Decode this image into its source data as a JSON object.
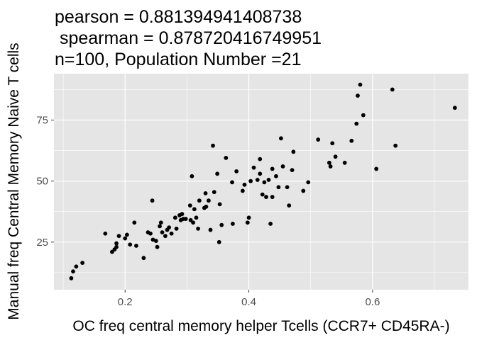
{
  "chart_data": {
    "type": "scatter",
    "title_lines": [
      "pearson = 0.881394941408738",
      " spearman = 0.878720416749951",
      "n=100, Population Number =21"
    ],
    "xlabel": "OC freq central memory helper Tcells (CCR7+ CD45RA-)",
    "ylabel": "Manual freq Central Memory Naive T cells",
    "xlim": [
      0.085,
      0.755
    ],
    "ylim": [
      5.5,
      94
    ],
    "x_ticks": [
      {
        "value": 0.2,
        "label": "0.2"
      },
      {
        "value": 0.4,
        "label": "0.4"
      },
      {
        "value": 0.6,
        "label": "0.6"
      }
    ],
    "y_ticks": [
      {
        "value": 25,
        "label": "25"
      },
      {
        "value": 50,
        "label": "50"
      },
      {
        "value": 75,
        "label": "75"
      }
    ],
    "grid": true,
    "panel_color": "#e5e5e5",
    "grid_color": "#ffffff",
    "point_color": "#000000",
    "points": [
      [
        0.113,
        10.2
      ],
      [
        0.116,
        13
      ],
      [
        0.121,
        15
      ],
      [
        0.131,
        16.5
      ],
      [
        0.168,
        28.5
      ],
      [
        0.179,
        21
      ],
      [
        0.183,
        22
      ],
      [
        0.186,
        24.5
      ],
      [
        0.186,
        23
      ],
      [
        0.19,
        27.5
      ],
      [
        0.2,
        26.5
      ],
      [
        0.203,
        28
      ],
      [
        0.208,
        24
      ],
      [
        0.215,
        33
      ],
      [
        0.218,
        23.5
      ],
      [
        0.23,
        18.5
      ],
      [
        0.237,
        29
      ],
      [
        0.241,
        28.5
      ],
      [
        0.244,
        42
      ],
      [
        0.245,
        26
      ],
      [
        0.25,
        25.5
      ],
      [
        0.252,
        23
      ],
      [
        0.256,
        31.5
      ],
      [
        0.258,
        33
      ],
      [
        0.26,
        29
      ],
      [
        0.265,
        27.5
      ],
      [
        0.268,
        30
      ],
      [
        0.271,
        31
      ],
      [
        0.275,
        28.5
      ],
      [
        0.281,
        35
      ],
      [
        0.283,
        30.5
      ],
      [
        0.288,
        36
      ],
      [
        0.29,
        34
      ],
      [
        0.292,
        36.5
      ],
      [
        0.294,
        34.5
      ],
      [
        0.298,
        34.5
      ],
      [
        0.305,
        40
      ],
      [
        0.306,
        34
      ],
      [
        0.308,
        52
      ],
      [
        0.31,
        33
      ],
      [
        0.312,
        38.5
      ],
      [
        0.315,
        35
      ],
      [
        0.318,
        30.5
      ],
      [
        0.32,
        42
      ],
      [
        0.328,
        39
      ],
      [
        0.33,
        45
      ],
      [
        0.331,
        39.5
      ],
      [
        0.335,
        42
      ],
      [
        0.338,
        30
      ],
      [
        0.342,
        64.5
      ],
      [
        0.344,
        45.5
      ],
      [
        0.349,
        53
      ],
      [
        0.352,
        25
      ],
      [
        0.353,
        40.5
      ],
      [
        0.356,
        32
      ],
      [
        0.363,
        59.5
      ],
      [
        0.373,
        49.5
      ],
      [
        0.374,
        32.5
      ],
      [
        0.38,
        54
      ],
      [
        0.39,
        46
      ],
      [
        0.393,
        48.5
      ],
      [
        0.398,
        33
      ],
      [
        0.4,
        35
      ],
      [
        0.403,
        50
      ],
      [
        0.408,
        55.5
      ],
      [
        0.414,
        50.5
      ],
      [
        0.418,
        53
      ],
      [
        0.418,
        59
      ],
      [
        0.422,
        44.5
      ],
      [
        0.425,
        49.5
      ],
      [
        0.428,
        43.5
      ],
      [
        0.432,
        50.5
      ],
      [
        0.435,
        32.5
      ],
      [
        0.438,
        55
      ],
      [
        0.438,
        43.5
      ],
      [
        0.444,
        52
      ],
      [
        0.448,
        47.5
      ],
      [
        0.452,
        67.5
      ],
      [
        0.455,
        56
      ],
      [
        0.462,
        47.5
      ],
      [
        0.465,
        40
      ],
      [
        0.47,
        54.5
      ],
      [
        0.472,
        62
      ],
      [
        0.488,
        46
      ],
      [
        0.496,
        49.5
      ],
      [
        0.512,
        67
      ],
      [
        0.53,
        57.5
      ],
      [
        0.532,
        56
      ],
      [
        0.535,
        65.5
      ],
      [
        0.54,
        60
      ],
      [
        0.555,
        57.5
      ],
      [
        0.566,
        66.5
      ],
      [
        0.574,
        73.5
      ],
      [
        0.576,
        85
      ],
      [
        0.58,
        89.5
      ],
      [
        0.585,
        77
      ],
      [
        0.606,
        55
      ],
      [
        0.632,
        87.5
      ],
      [
        0.637,
        64.5
      ],
      [
        0.733,
        80
      ]
    ]
  }
}
